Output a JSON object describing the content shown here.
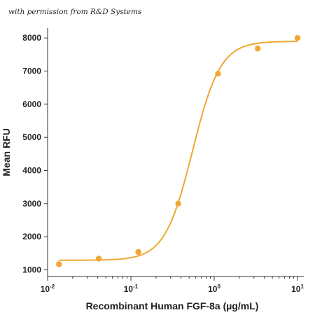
{
  "credit": "with permission from R&D Systems",
  "colors": {
    "series": "#F0A732",
    "axis": "#333333"
  },
  "chart_data": {
    "type": "scatter",
    "title": "",
    "xlabel": "Recombinant Human FGF-8a (µg/mL)",
    "ylabel": "Mean RFU",
    "xscale": "log",
    "xlim": [
      0.01,
      10
    ],
    "ylim": [
      800,
      8300
    ],
    "xticks": [
      {
        "value": 0.01,
        "base": "10",
        "exp": "-2"
      },
      {
        "value": 0.1,
        "base": "10",
        "exp": "-1"
      },
      {
        "value": 1,
        "base": "10",
        "exp": "0"
      },
      {
        "value": 10,
        "base": "10",
        "exp": "1"
      }
    ],
    "yticks": [
      1000,
      2000,
      3000,
      4000,
      5000,
      6000,
      7000,
      8000
    ],
    "grid": false,
    "series": [
      {
        "points": [
          {
            "x": 0.0137,
            "y": 1170
          },
          {
            "x": 0.0412,
            "y": 1340
          },
          {
            "x": 0.123,
            "y": 1540
          },
          {
            "x": 0.37,
            "y": 3000
          },
          {
            "x": 1.11,
            "y": 6920
          },
          {
            "x": 3.33,
            "y": 7680
          },
          {
            "x": 10,
            "y": 8000
          }
        ],
        "fit": {
          "model": "4PL",
          "bottom": 1290,
          "top": 7900,
          "ec50": 0.55,
          "hill": 2.6
        }
      }
    ]
  }
}
